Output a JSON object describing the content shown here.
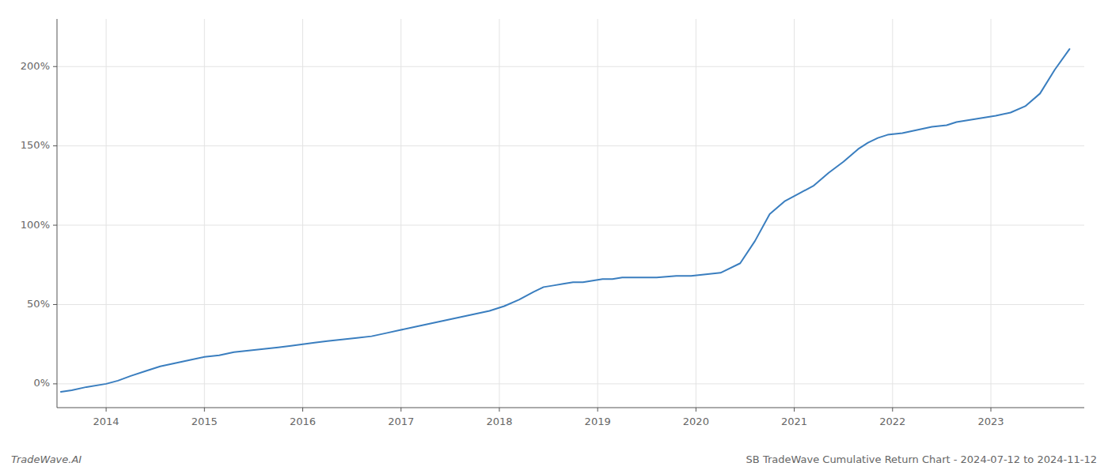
{
  "chart_data": {
    "type": "line",
    "title": "SB TradeWave Cumulative Return Chart - 2024-07-12 to 2024-11-12",
    "annotations": [
      "TradeWave.AI"
    ],
    "color": "#3a7ebf",
    "grid": true,
    "x": [
      2013.54,
      2013.65,
      2013.8,
      2014.0,
      2014.12,
      2014.25,
      2014.4,
      2014.55,
      2014.7,
      2014.85,
      2015.0,
      2015.15,
      2015.3,
      2015.45,
      2015.6,
      2015.75,
      2015.88,
      2016.0,
      2016.12,
      2016.25,
      2016.4,
      2016.55,
      2016.7,
      2016.85,
      2017.0,
      2017.15,
      2017.3,
      2017.45,
      2017.6,
      2017.75,
      2017.9,
      2018.05,
      2018.2,
      2018.35,
      2018.45,
      2018.55,
      2018.65,
      2018.75,
      2018.85,
      2018.95,
      2019.05,
      2019.15,
      2019.25,
      2019.45,
      2019.6,
      2019.8,
      2019.95,
      2020.1,
      2020.25,
      2020.45,
      2020.6,
      2020.75,
      2020.9,
      2021.05,
      2021.2,
      2021.35,
      2021.5,
      2021.65,
      2021.75,
      2021.85,
      2021.95,
      2022.1,
      2022.25,
      2022.4,
      2022.55,
      2022.65,
      2022.75,
      2022.85,
      2022.95,
      2023.05,
      2023.2,
      2023.35,
      2023.5,
      2023.65,
      2023.8
    ],
    "values": [
      -5,
      -4,
      -2,
      0,
      2,
      5,
      8,
      11,
      13,
      15,
      17,
      18,
      20,
      21,
      22,
      23,
      24,
      25,
      26,
      27,
      28,
      29,
      30,
      32,
      34,
      36,
      38,
      40,
      42,
      44,
      46,
      49,
      53,
      58,
      61,
      62,
      63,
      64,
      64,
      65,
      66,
      66,
      67,
      67,
      67,
      68,
      68,
      69,
      70,
      76,
      90,
      107,
      115,
      120,
      125,
      133,
      140,
      148,
      152,
      155,
      157,
      158,
      160,
      162,
      163,
      165,
      166,
      167,
      168,
      169,
      171,
      175,
      183,
      198,
      211
    ],
    "xlim": [
      2013.5,
      2023.95
    ],
    "ylim": [
      -15,
      230
    ],
    "xticks": [
      2014,
      2015,
      2016,
      2017,
      2018,
      2019,
      2020,
      2021,
      2022,
      2023
    ],
    "yticks": [
      {
        "value": 0,
        "label": "0%"
      },
      {
        "value": 50,
        "label": "50%"
      },
      {
        "value": 100,
        "label": "100%"
      },
      {
        "value": 150,
        "label": "150%"
      },
      {
        "value": 200,
        "label": "200%"
      }
    ]
  }
}
